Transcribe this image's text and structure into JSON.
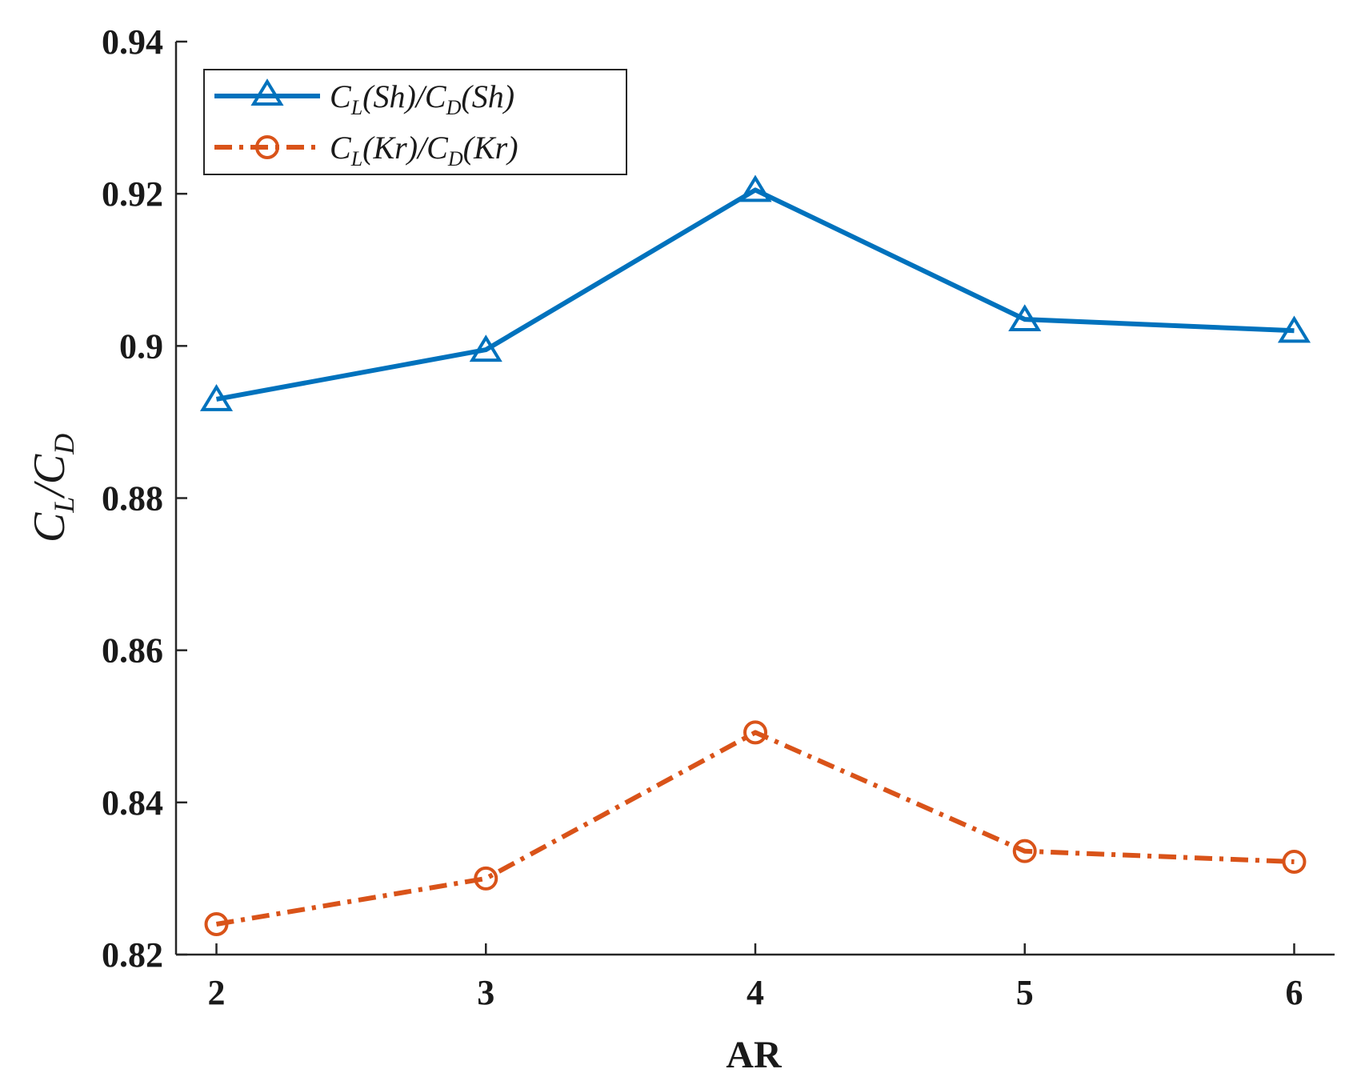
{
  "chart_data": {
    "type": "line",
    "title": "",
    "xlabel": "AR",
    "ylabel": "C_L/C_D",
    "x": [
      2,
      3,
      4,
      5,
      6
    ],
    "xticks": [
      "2",
      "3",
      "4",
      "5",
      "6"
    ],
    "xlim": [
      1.85,
      6.15
    ],
    "yticks": [
      "0.82",
      "0.84",
      "0.86",
      "0.88",
      "0.9",
      "0.92",
      "0.94"
    ],
    "ylim": [
      0.82,
      0.94
    ],
    "grid": false,
    "legend_position": "top-left",
    "series": [
      {
        "name": "C_L(Sh)/C_D(Sh)",
        "values": [
          0.893,
          0.8995,
          0.9205,
          0.9035,
          0.902
        ],
        "color": "#0072BD",
        "marker": "triangle",
        "line_style": "solid"
      },
      {
        "name": "C_L(Kr)/C_D(Kr)",
        "values": [
          0.824,
          0.83,
          0.8492,
          0.8336,
          0.8322
        ],
        "color": "#D95319",
        "marker": "circle",
        "line_style": "dash-dot"
      }
    ]
  }
}
